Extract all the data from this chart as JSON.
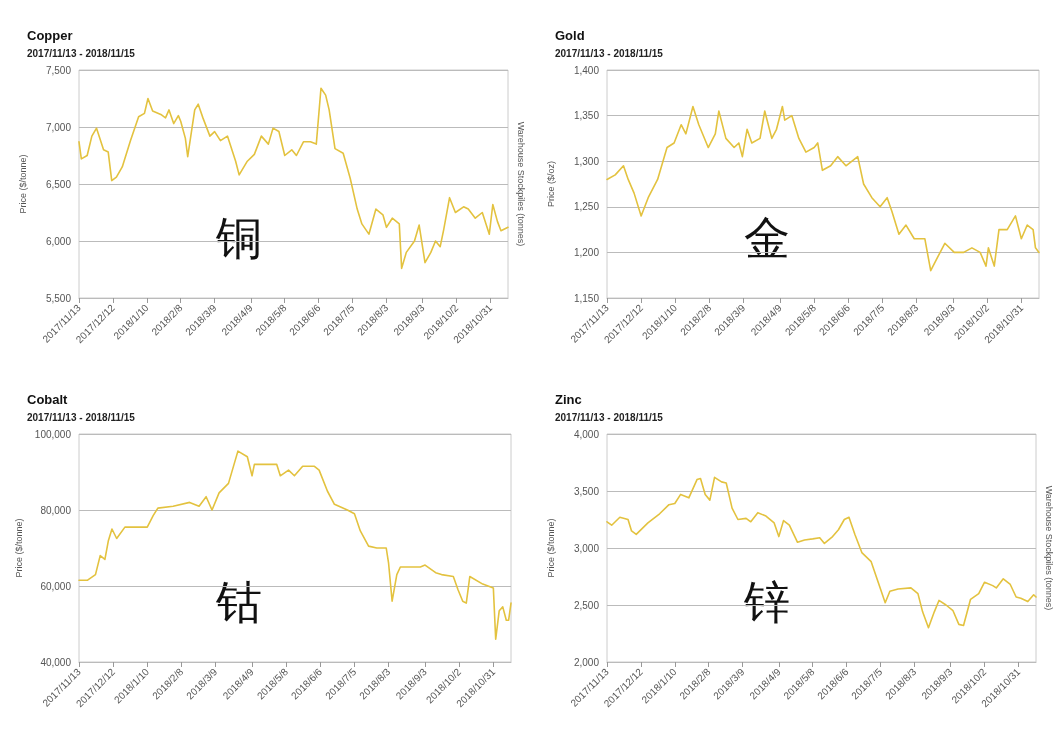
{
  "chart_data": [
    {
      "type": "line",
      "title": "Copper",
      "subtitle": "2017/11/13 - 2018/11/15",
      "ylabel": "Price ($/tonne)",
      "y2label": "Warehouse Stockpiles (tonnes)",
      "annotations": [
        "铜"
      ],
      "x": [
        "2017-11-13",
        "2017-11-15",
        "2017-11-20",
        "2017-11-24",
        "2017-11-28",
        "2017-12-04",
        "2017-12-08",
        "2017-12-11",
        "2017-12-15",
        "2017-12-20",
        "2017-12-27",
        "2018-01-03",
        "2018-01-08",
        "2018-01-11",
        "2018-01-15",
        "2018-01-22",
        "2018-01-26",
        "2018-01-29",
        "2018-02-02",
        "2018-02-06",
        "2018-02-08",
        "2018-02-12",
        "2018-02-14",
        "2018-02-20",
        "2018-02-23",
        "2018-02-27",
        "2018-03-05",
        "2018-03-09",
        "2018-03-14",
        "2018-03-20",
        "2018-03-27",
        "2018-03-30",
        "2018-04-06",
        "2018-04-12",
        "2018-04-18",
        "2018-04-24",
        "2018-04-28",
        "2018-05-03",
        "2018-05-08",
        "2018-05-14",
        "2018-05-18",
        "2018-05-24",
        "2018-05-30",
        "2018-06-04",
        "2018-06-08",
        "2018-06-12",
        "2018-06-15",
        "2018-06-20",
        "2018-06-27",
        "2018-07-03",
        "2018-07-09",
        "2018-07-13",
        "2018-07-19",
        "2018-07-25",
        "2018-07-31",
        "2018-08-03",
        "2018-08-08",
        "2018-08-14",
        "2018-08-16",
        "2018-08-20",
        "2018-08-27",
        "2018-08-31",
        "2018-09-05",
        "2018-09-10",
        "2018-09-14",
        "2018-09-18",
        "2018-09-21",
        "2018-09-26",
        "2018-10-01",
        "2018-10-08",
        "2018-10-12",
        "2018-10-18",
        "2018-10-24",
        "2018-10-30",
        "2018-11-02",
        "2018-11-06",
        "2018-11-09",
        "2018-11-15"
      ],
      "series": [
        {
          "color": "#e3c23f",
          "values": [
            6870,
            6720,
            6750,
            6920,
            6990,
            6800,
            6780,
            6530,
            6560,
            6650,
            6880,
            7090,
            7120,
            7250,
            7140,
            7110,
            7080,
            7150,
            7030,
            7100,
            7050,
            6900,
            6740,
            7150,
            7200,
            7080,
            6920,
            6960,
            6880,
            6920,
            6700,
            6580,
            6700,
            6760,
            6920,
            6850,
            6990,
            6960,
            6750,
            6800,
            6750,
            6870,
            6870,
            6850,
            7340,
            7280,
            7150,
            6810,
            6770,
            6550,
            6280,
            6150,
            6060,
            6280,
            6230,
            6120,
            6200,
            6150,
            5760,
            5900,
            6000,
            6140,
            5810,
            5900,
            6000,
            5950,
            6100,
            6380,
            6250,
            6300,
            6280,
            6200,
            6250,
            6060,
            6320,
            6170,
            6090,
            6120
          ]
        }
      ],
      "xlim": [
        "2017-11-13",
        "2018-11-15"
      ],
      "xticks": [
        {
          "value": "2017-11-13",
          "label": "2017/11/13"
        },
        {
          "value": "2017-12-12",
          "label": "2017/12/12"
        },
        {
          "value": "2018-01-10",
          "label": "2018/1/10"
        },
        {
          "value": "2018-02-08",
          "label": "2018/2/8"
        },
        {
          "value": "2018-03-09",
          "label": "2018/3/9"
        },
        {
          "value": "2018-04-09",
          "label": "2018/4/9"
        },
        {
          "value": "2018-05-08",
          "label": "2018/5/8"
        },
        {
          "value": "2018-06-06",
          "label": "2018/6/6"
        },
        {
          "value": "2018-07-05",
          "label": "2018/7/5"
        },
        {
          "value": "2018-08-03",
          "label": "2018/8/3"
        },
        {
          "value": "2018-09-03",
          "label": "2018/9/3"
        },
        {
          "value": "2018-10-02",
          "label": "2018/10/2"
        },
        {
          "value": "2018-10-31",
          "label": "2018/10/31"
        }
      ],
      "ylim": [
        5500,
        7500
      ],
      "yticks": [
        {
          "value": 5500,
          "label": "5,500"
        },
        {
          "value": 6000,
          "label": "6,000"
        },
        {
          "value": 6500,
          "label": "6,500"
        },
        {
          "value": 7000,
          "label": "7,000"
        },
        {
          "value": 7500,
          "label": "7,500"
        }
      ],
      "grid": "y",
      "marker": "none",
      "line_style": "solid"
    },
    {
      "type": "line",
      "title": "Gold",
      "subtitle": "2017/11/13 - 2018/11/15",
      "ylabel": "Price ($/oz)",
      "annotations": [
        "金"
      ],
      "x": [
        "2017-11-13",
        "2017-11-20",
        "2017-11-27",
        "2017-12-01",
        "2017-12-06",
        "2017-12-12",
        "2017-12-18",
        "2017-12-26",
        "2018-01-03",
        "2018-01-09",
        "2018-01-15",
        "2018-01-19",
        "2018-01-25",
        "2018-01-30",
        "2018-02-07",
        "2018-02-13",
        "2018-02-16",
        "2018-02-22",
        "2018-03-01",
        "2018-03-05",
        "2018-03-08",
        "2018-03-12",
        "2018-03-16",
        "2018-03-23",
        "2018-03-27",
        "2018-04-02",
        "2018-04-06",
        "2018-04-11",
        "2018-04-13",
        "2018-04-19",
        "2018-04-25",
        "2018-05-01",
        "2018-05-08",
        "2018-05-11",
        "2018-05-15",
        "2018-05-22",
        "2018-05-28",
        "2018-06-04",
        "2018-06-14",
        "2018-06-19",
        "2018-06-26",
        "2018-07-03",
        "2018-07-09",
        "2018-07-13",
        "2018-07-19",
        "2018-07-25",
        "2018-08-01",
        "2018-08-10",
        "2018-08-15",
        "2018-08-21",
        "2018-08-27",
        "2018-09-04",
        "2018-09-12",
        "2018-09-19",
        "2018-09-26",
        "2018-10-01",
        "2018-10-03",
        "2018-10-08",
        "2018-10-12",
        "2018-10-19",
        "2018-10-26",
        "2018-10-31",
        "2018-11-05",
        "2018-11-10",
        "2018-11-12",
        "2018-11-15"
      ],
      "series": [
        {
          "color": "#e3c23f",
          "values": [
            1280,
            1285,
            1295,
            1280,
            1265,
            1240,
            1260,
            1280,
            1315,
            1320,
            1340,
            1330,
            1360,
            1340,
            1315,
            1330,
            1355,
            1325,
            1315,
            1320,
            1305,
            1335,
            1320,
            1325,
            1355,
            1325,
            1335,
            1360,
            1345,
            1350,
            1325,
            1310,
            1315,
            1320,
            1290,
            1295,
            1305,
            1295,
            1305,
            1275,
            1260,
            1250,
            1260,
            1245,
            1220,
            1230,
            1215,
            1215,
            1180,
            1195,
            1210,
            1200,
            1200,
            1205,
            1200,
            1185,
            1205,
            1185,
            1225,
            1225,
            1240,
            1215,
            1230,
            1225,
            1205,
            1200
          ]
        }
      ],
      "xlim": [
        "2017-11-13",
        "2018-11-15"
      ],
      "xticks": [
        {
          "value": "2017-11-13",
          "label": "2017/11/13"
        },
        {
          "value": "2017-12-12",
          "label": "2017/12/12"
        },
        {
          "value": "2018-01-10",
          "label": "2018/1/10"
        },
        {
          "value": "2018-02-08",
          "label": "2018/2/8"
        },
        {
          "value": "2018-03-09",
          "label": "2018/3/9"
        },
        {
          "value": "2018-04-09",
          "label": "2018/4/9"
        },
        {
          "value": "2018-05-08",
          "label": "2018/5/8"
        },
        {
          "value": "2018-06-06",
          "label": "2018/6/6"
        },
        {
          "value": "2018-07-05",
          "label": "2018/7/5"
        },
        {
          "value": "2018-08-03",
          "label": "2018/8/3"
        },
        {
          "value": "2018-09-03",
          "label": "2018/9/3"
        },
        {
          "value": "2018-10-02",
          "label": "2018/10/2"
        },
        {
          "value": "2018-10-31",
          "label": "2018/10/31"
        }
      ],
      "ylim": [
        1150,
        1400
      ],
      "yticks": [
        {
          "value": 1150,
          "label": "1,150"
        },
        {
          "value": 1200,
          "label": "1,200"
        },
        {
          "value": 1250,
          "label": "1,250"
        },
        {
          "value": 1300,
          "label": "1,300"
        },
        {
          "value": 1350,
          "label": "1,350"
        },
        {
          "value": 1400,
          "label": "1,400"
        }
      ],
      "grid": "y",
      "marker": "none",
      "line_style": "solid"
    },
    {
      "type": "line",
      "title": "Cobalt",
      "subtitle": "2017/11/13 - 2018/11/15",
      "ylabel": "Price ($/tonne)",
      "annotations": [
        "钴"
      ],
      "x": [
        "2017-11-13",
        "2017-11-20",
        "2017-11-27",
        "2017-12-01",
        "2017-12-05",
        "2017-12-08",
        "2017-12-11",
        "2017-12-15",
        "2017-12-22",
        "2018-01-10",
        "2018-01-15",
        "2018-01-19",
        "2018-02-01",
        "2018-02-15",
        "2018-02-23",
        "2018-03-01",
        "2018-03-06",
        "2018-03-12",
        "2018-03-20",
        "2018-03-28",
        "2018-04-05",
        "2018-04-09",
        "2018-04-11",
        "2018-04-30",
        "2018-05-03",
        "2018-05-10",
        "2018-05-15",
        "2018-05-22",
        "2018-06-01",
        "2018-06-05",
        "2018-06-12",
        "2018-06-18",
        "2018-06-29",
        "2018-07-05",
        "2018-07-10",
        "2018-07-17",
        "2018-07-24",
        "2018-08-01",
        "2018-08-03",
        "2018-08-06",
        "2018-08-10",
        "2018-08-13",
        "2018-08-30",
        "2018-09-03",
        "2018-09-12",
        "2018-09-17",
        "2018-09-27",
        "2018-10-01",
        "2018-10-05",
        "2018-10-08",
        "2018-10-11",
        "2018-10-22",
        "2018-10-31",
        "2018-11-02",
        "2018-11-05",
        "2018-11-08",
        "2018-11-11",
        "2018-11-13",
        "2018-11-15"
      ],
      "series": [
        {
          "color": "#e3c23f",
          "values": [
            61500,
            61500,
            63000,
            68000,
            67000,
            72000,
            75000,
            72500,
            75500,
            75500,
            78500,
            80500,
            81000,
            82000,
            81000,
            83500,
            80000,
            84500,
            87000,
            95500,
            94000,
            89000,
            92000,
            92000,
            89000,
            90500,
            89000,
            91500,
            91500,
            90500,
            85000,
            81500,
            80000,
            79000,
            74500,
            70500,
            70000,
            70000,
            66000,
            56000,
            63000,
            65000,
            65000,
            65500,
            63500,
            63000,
            62500,
            59000,
            56000,
            55500,
            62500,
            60500,
            59500,
            46000,
            53500,
            54500,
            51000,
            51000,
            55500
          ]
        }
      ],
      "xlim": [
        "2017-11-13",
        "2018-11-15"
      ],
      "xticks": [
        {
          "value": "2017-11-13",
          "label": "2017/11/13"
        },
        {
          "value": "2017-12-12",
          "label": "2017/12/12"
        },
        {
          "value": "2018-01-10",
          "label": "2018/1/10"
        },
        {
          "value": "2018-02-08",
          "label": "2018/2/8"
        },
        {
          "value": "2018-03-09",
          "label": "2018/3/9"
        },
        {
          "value": "2018-04-09",
          "label": "2018/4/9"
        },
        {
          "value": "2018-05-08",
          "label": "2018/5/8"
        },
        {
          "value": "2018-06-06",
          "label": "2018/6/6"
        },
        {
          "value": "2018-07-05",
          "label": "2018/7/5"
        },
        {
          "value": "2018-08-03",
          "label": "2018/8/3"
        },
        {
          "value": "2018-09-03",
          "label": "2018/9/3"
        },
        {
          "value": "2018-10-02",
          "label": "2018/10/2"
        },
        {
          "value": "2018-10-31",
          "label": "2018/10/31"
        }
      ],
      "ylim": [
        40000,
        100000
      ],
      "yticks": [
        {
          "value": 40000,
          "label": "40,000"
        },
        {
          "value": 60000,
          "label": "60,000"
        },
        {
          "value": 80000,
          "label": "80,000"
        },
        {
          "value": 100000,
          "label": "100,000"
        }
      ],
      "grid": "y",
      "marker": "none",
      "line_style": "solid"
    },
    {
      "type": "line",
      "title": "Zinc",
      "subtitle": "2017/11/13 - 2018/11/15",
      "ylabel": "Price ($/tonne)",
      "y2label": "Warehouse Stockpiles (tonnes)",
      "annotations": [
        "锌"
      ],
      "x": [
        "2017-11-13",
        "2017-11-17",
        "2017-11-24",
        "2017-12-01",
        "2017-12-04",
        "2017-12-08",
        "2017-12-18",
        "2017-12-28",
        "2018-01-05",
        "2018-01-10",
        "2018-01-15",
        "2018-01-22",
        "2018-01-29",
        "2018-02-01",
        "2018-02-05",
        "2018-02-09",
        "2018-02-13",
        "2018-02-19",
        "2018-02-23",
        "2018-02-28",
        "2018-03-05",
        "2018-03-12",
        "2018-03-16",
        "2018-03-22",
        "2018-03-29",
        "2018-04-05",
        "2018-04-09",
        "2018-04-13",
        "2018-04-18",
        "2018-04-25",
        "2018-05-01",
        "2018-05-08",
        "2018-05-14",
        "2018-05-18",
        "2018-05-25",
        "2018-05-30",
        "2018-06-04",
        "2018-06-08",
        "2018-06-13",
        "2018-06-19",
        "2018-06-27",
        "2018-07-03",
        "2018-07-09",
        "2018-07-13",
        "2018-07-20",
        "2018-07-31",
        "2018-08-06",
        "2018-08-10",
        "2018-08-15",
        "2018-08-20",
        "2018-08-24",
        "2018-08-30",
        "2018-09-05",
        "2018-09-10",
        "2018-09-14",
        "2018-09-20",
        "2018-09-27",
        "2018-10-02",
        "2018-10-09",
        "2018-10-12",
        "2018-10-18",
        "2018-10-24",
        "2018-10-29",
        "2018-11-02",
        "2018-11-08",
        "2018-11-13",
        "2018-11-15"
      ],
      "series": [
        {
          "color": "#e3c23f",
          "values": [
            3230,
            3200,
            3270,
            3250,
            3150,
            3120,
            3220,
            3300,
            3380,
            3390,
            3470,
            3440,
            3600,
            3610,
            3470,
            3420,
            3620,
            3580,
            3570,
            3350,
            3250,
            3260,
            3230,
            3310,
            3280,
            3220,
            3100,
            3240,
            3200,
            3050,
            3070,
            3080,
            3090,
            3040,
            3100,
            3160,
            3250,
            3270,
            3120,
            2960,
            2880,
            2700,
            2520,
            2620,
            2640,
            2650,
            2600,
            2440,
            2300,
            2440,
            2540,
            2500,
            2450,
            2330,
            2320,
            2550,
            2600,
            2700,
            2670,
            2650,
            2730,
            2680,
            2570,
            2560,
            2530,
            2590,
            2570
          ]
        }
      ],
      "xlim": [
        "2017-11-13",
        "2018-11-15"
      ],
      "xticks": [
        {
          "value": "2017-11-13",
          "label": "2017/11/13"
        },
        {
          "value": "2017-12-12",
          "label": "2017/12/12"
        },
        {
          "value": "2018-01-10",
          "label": "2018/1/10"
        },
        {
          "value": "2018-02-08",
          "label": "2018/2/8"
        },
        {
          "value": "2018-03-09",
          "label": "2018/3/9"
        },
        {
          "value": "2018-04-09",
          "label": "2018/4/9"
        },
        {
          "value": "2018-05-08",
          "label": "2018/5/8"
        },
        {
          "value": "2018-06-06",
          "label": "2018/6/6"
        },
        {
          "value": "2018-07-05",
          "label": "2018/7/5"
        },
        {
          "value": "2018-08-03",
          "label": "2018/8/3"
        },
        {
          "value": "2018-09-03",
          "label": "2018/9/3"
        },
        {
          "value": "2018-10-02",
          "label": "2018/10/2"
        },
        {
          "value": "2018-10-31",
          "label": "2018/10/31"
        }
      ],
      "ylim": [
        2000,
        4000
      ],
      "yticks": [
        {
          "value": 2000,
          "label": "2,000"
        },
        {
          "value": 2500,
          "label": "2,500"
        },
        {
          "value": 3000,
          "label": "3,000"
        },
        {
          "value": 3500,
          "label": "3,500"
        },
        {
          "value": 4000,
          "label": "4,000"
        }
      ],
      "grid": "y",
      "marker": "none",
      "line_style": "solid"
    }
  ]
}
